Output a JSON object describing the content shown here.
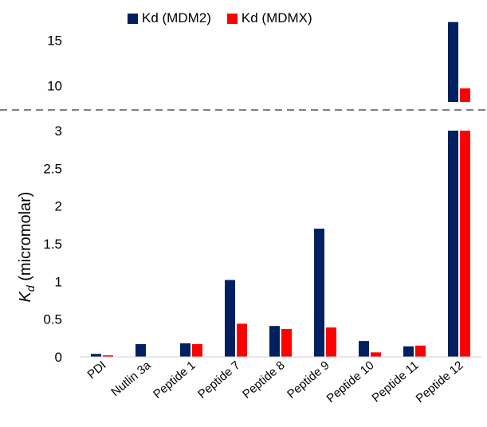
{
  "chart_data": {
    "type": "bar",
    "title": "",
    "xlabel": "",
    "ylabel": "K",
    "ylabel_sub": "d",
    "ylabel_unit": " (micromolar)",
    "categories": [
      "PDI",
      "Nutlin 3a",
      "Peptide 1",
      "Peptide 7",
      "Peptide 8",
      "Peptide 9",
      "Peptide 10",
      "Peptide 11",
      "Peptide 12"
    ],
    "series": [
      {
        "name": "Kd (MDM2)",
        "color": "#002060",
        "values": [
          0.04,
          0.17,
          0.18,
          1.02,
          0.41,
          1.7,
          0.21,
          0.14,
          17.0
        ]
      },
      {
        "name": "Kd (MDMX)",
        "color": "#ff0000",
        "values": [
          0.02,
          null,
          0.17,
          0.44,
          0.37,
          0.39,
          0.06,
          0.15,
          9.7
        ]
      }
    ],
    "y_axis_broken": true,
    "lower_segment": {
      "ylim": [
        0,
        3
      ],
      "ticks": [
        "0",
        "0.5",
        "1",
        "1.5",
        "2",
        "2.5",
        "3"
      ]
    },
    "upper_segment": {
      "ylim": [
        8.2,
        17.5
      ],
      "ticks": [
        "10",
        "15"
      ]
    },
    "legend_position": "top",
    "grid": false
  }
}
